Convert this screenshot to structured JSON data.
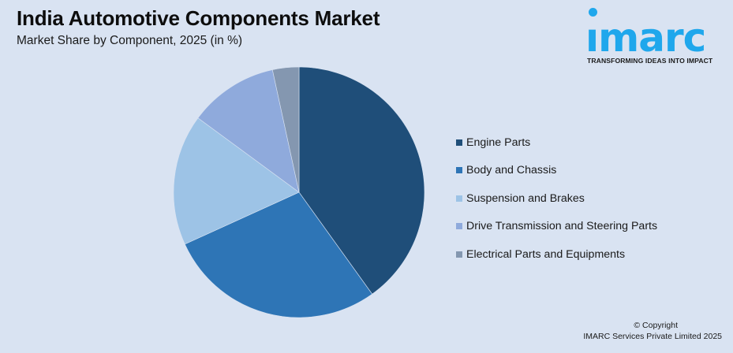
{
  "header": {
    "title": "India Automotive Components Market",
    "subtitle": "Market Share by Component, 2025 (in %)"
  },
  "logo": {
    "word": "ımarc",
    "tagline": "TRANSFORMING IDEAS INTO IMPACT",
    "color": "#1fa7ec"
  },
  "legend": [
    {
      "label": "Engine Parts",
      "color": "#1f4e79"
    },
    {
      "label": "Body and Chassis",
      "color": "#2e75b6"
    },
    {
      "label": "Suspension and Brakes",
      "color": "#9dc3e6"
    },
    {
      "label": "Drive Transmission and Steering Parts",
      "color": "#8faadc"
    },
    {
      "label": "Electrical Parts and Equipments",
      "color": "#8497b0"
    }
  ],
  "footer": {
    "copyright": "© Copyright",
    "company": "IMARC Services Private Limited 2025"
  },
  "chart_data": {
    "type": "pie",
    "title": "India Automotive Components Market",
    "subtitle": "Market Share by Component, 2025 (in %)",
    "categories": [
      "Engine Parts",
      "Body and Chassis",
      "Suspension and Brakes",
      "Drive Transmission and Steering Parts",
      "Electrical Parts and Equipments"
    ],
    "values": [
      40.1,
      28.1,
      16.9,
      11.5,
      3.4
    ],
    "colors": [
      "#1f4e79",
      "#2e75b6",
      "#9dc3e6",
      "#8faadc",
      "#8497b0"
    ],
    "start_angle": "12 o'clock, clockwise",
    "legend_position": "right",
    "data_labels": false
  }
}
